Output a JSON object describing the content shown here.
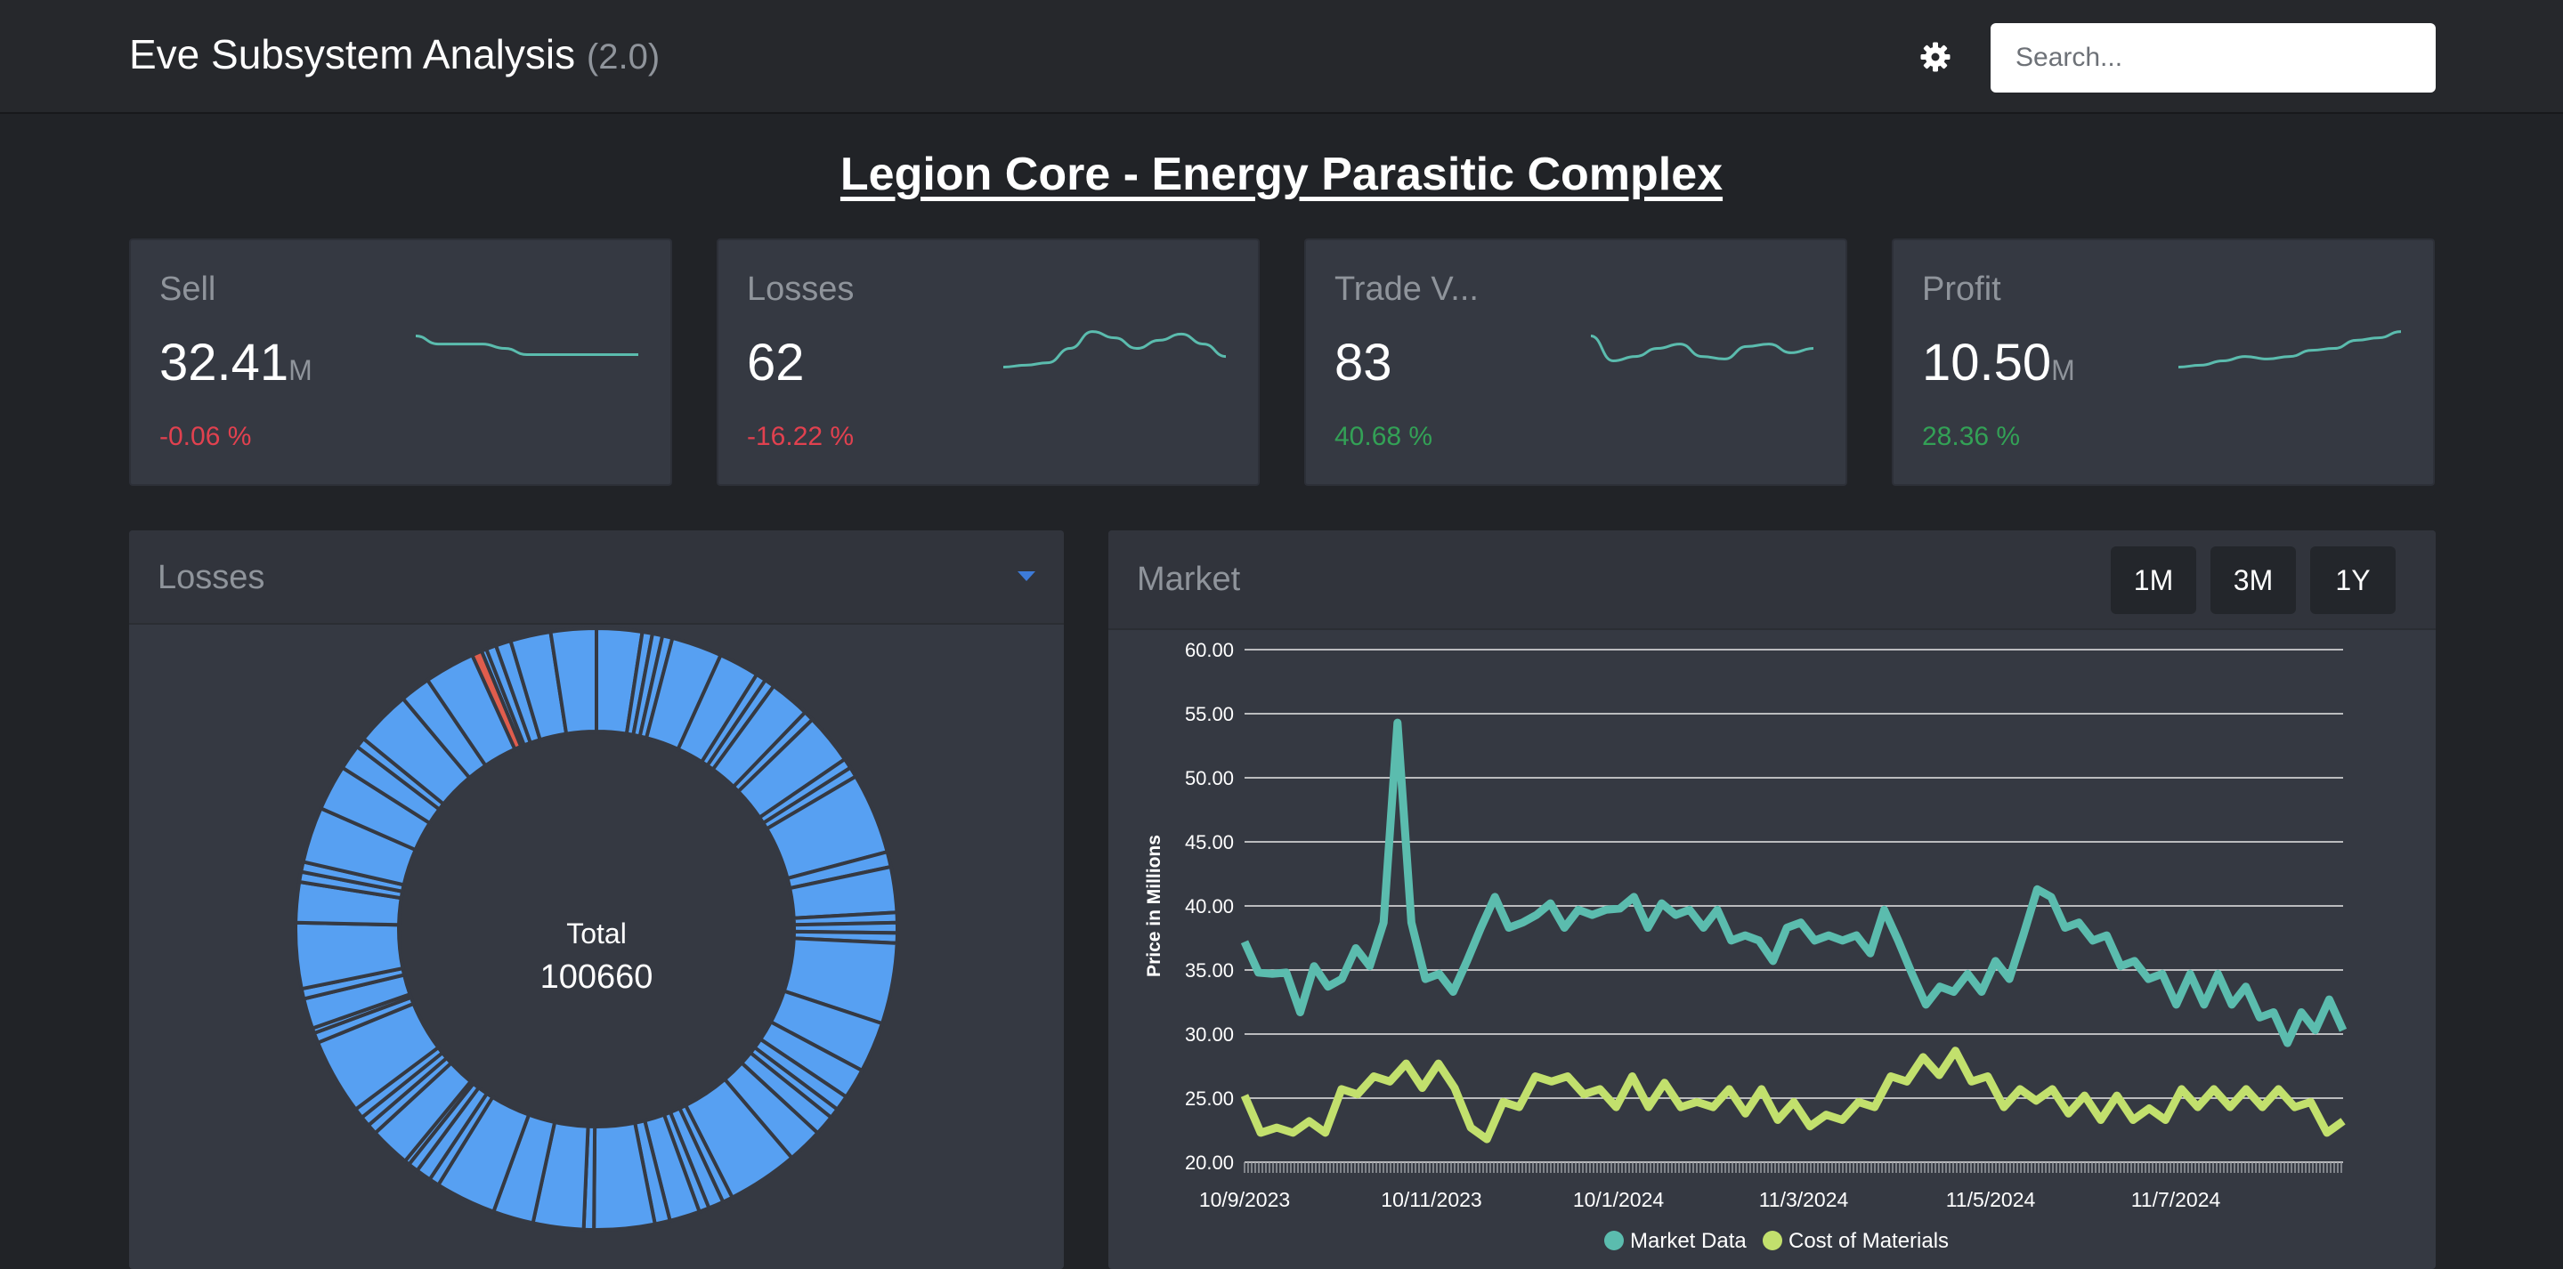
{
  "header": {
    "title": "Eve Subsystem Analysis",
    "version": "(2.0)",
    "settings_icon": "gear-icon",
    "search_placeholder": "Search..."
  },
  "page_title": "Legion Core - Energy Parasitic Complex",
  "stats": [
    {
      "label": "Sell",
      "value": "32.41",
      "unit": "M",
      "change": "-0.06 %",
      "trend": "down",
      "spark": [
        0.75,
        0.62,
        0.62,
        0.62,
        0.55,
        0.45,
        0.45,
        0.45,
        0.45,
        0.45,
        0.45
      ]
    },
    {
      "label": "Losses",
      "value": "62",
      "unit": "",
      "change": "-16.22 %",
      "trend": "down",
      "spark": [
        0.25,
        0.28,
        0.32,
        0.55,
        0.82,
        0.72,
        0.55,
        0.68,
        0.78,
        0.62,
        0.42
      ]
    },
    {
      "label": "Trade V...",
      "value": "83",
      "unit": "",
      "change": "40.68 %",
      "trend": "up",
      "spark": [
        0.75,
        0.35,
        0.42,
        0.55,
        0.62,
        0.42,
        0.38,
        0.58,
        0.62,
        0.48,
        0.55
      ]
    },
    {
      "label": "Profit",
      "value": "10.50",
      "unit": "M",
      "change": "28.36 %",
      "trend": "up",
      "spark": [
        0.25,
        0.28,
        0.35,
        0.42,
        0.38,
        0.42,
        0.52,
        0.55,
        0.68,
        0.72,
        0.82
      ]
    }
  ],
  "losses_panel": {
    "title": "Losses",
    "dropdown_icon": "caret-down-icon",
    "total_label": "Total",
    "total_value": "100660"
  },
  "market_panel": {
    "title": "Market",
    "range_buttons": [
      "1M",
      "3M",
      "1Y"
    ]
  },
  "colors": {
    "market_data": "#5bbcae",
    "cost_of_materials": "#c2e06d",
    "donut": "#57a0f2",
    "donut_highlight": "#e05d4d",
    "negative": "#e1414f",
    "positive": "#33a156"
  },
  "chart_data": {
    "type": "line",
    "ylabel": "Price in Millions",
    "ylim": [
      20,
      60
    ],
    "yticks": [
      "20.00",
      "25.00",
      "30.00",
      "35.00",
      "40.00",
      "45.00",
      "50.00",
      "55.00",
      "60.00"
    ],
    "x_tick_labels": [
      "10/9/2023",
      "10/11/2023",
      "10/1/2024",
      "11/3/2024",
      "11/5/2024",
      "11/7/2024"
    ],
    "legend_position": "bottom",
    "series": [
      {
        "name": "Market Data",
        "values": [
          36.5,
          35.5,
          34,
          35.5,
          31,
          36,
          33,
          35,
          36,
          36,
          38,
          55,
          38,
          35,
          34,
          34,
          35,
          39,
          40,
          39,
          38,
          40,
          39.5,
          39,
          39,
          40,
          39,
          40.5,
          40,
          39,
          39.5,
          40,
          39,
          39,
          39,
          38,
          37,
          38,
          35,
          39,
          38,
          38,
          37,
          38,
          37,
          37,
          39,
          38,
          34,
          33,
          33,
          34,
          34,
          34,
          35,
          35,
          37,
          42,
          40,
          39,
          38,
          38,
          37,
          36,
          35,
          35,
          34,
          33,
          34,
          33,
          34,
          33,
          33,
          32,
          31,
          30,
          31,
          31,
          32,
          31
        ]
      },
      {
        "name": "Cost of Materials",
        "values": [
          24.5,
          23,
          22,
          23,
          22.5,
          23,
          25,
          26,
          26,
          27,
          27,
          26.5,
          27,
          26.5,
          22,
          22.5,
          24,
          25,
          26,
          27,
          26,
          26,
          25,
          25,
          26,
          25,
          25.5,
          25,
          24,
          25,
          25,
          24.5,
          25,
          24,
          24,
          23.5,
          23,
          24,
          24,
          25,
          26,
          27,
          27.5,
          27.5,
          28,
          27,
          26,
          25,
          25,
          25.5,
          25,
          24.5,
          24.5,
          24,
          24.5,
          24,
          23.5,
          24,
          25,
          25,
          25,
          25,
          25,
          25,
          25,
          25,
          24,
          23,
          22.5
        ]
      }
    ]
  },
  "donut_data": {
    "segments_degrees": [
      9,
      2,
      2,
      2,
      10,
      8,
      2,
      2,
      8,
      2,
      10,
      2,
      2,
      16,
      3,
      9,
      2,
      2,
      2,
      16,
      10,
      6,
      3,
      2,
      4,
      7,
      14,
      2,
      3,
      2,
      6,
      3,
      12,
      2,
      10,
      8,
      12,
      2,
      3,
      2,
      1,
      8,
      2,
      2,
      2,
      15,
      2,
      1,
      6,
      2,
      13,
      8,
      2,
      2,
      11,
      9,
      5,
      2,
      11,
      6,
      10,
      2,
      1,
      2,
      3,
      8,
      9
    ],
    "highlight_index": 61
  }
}
